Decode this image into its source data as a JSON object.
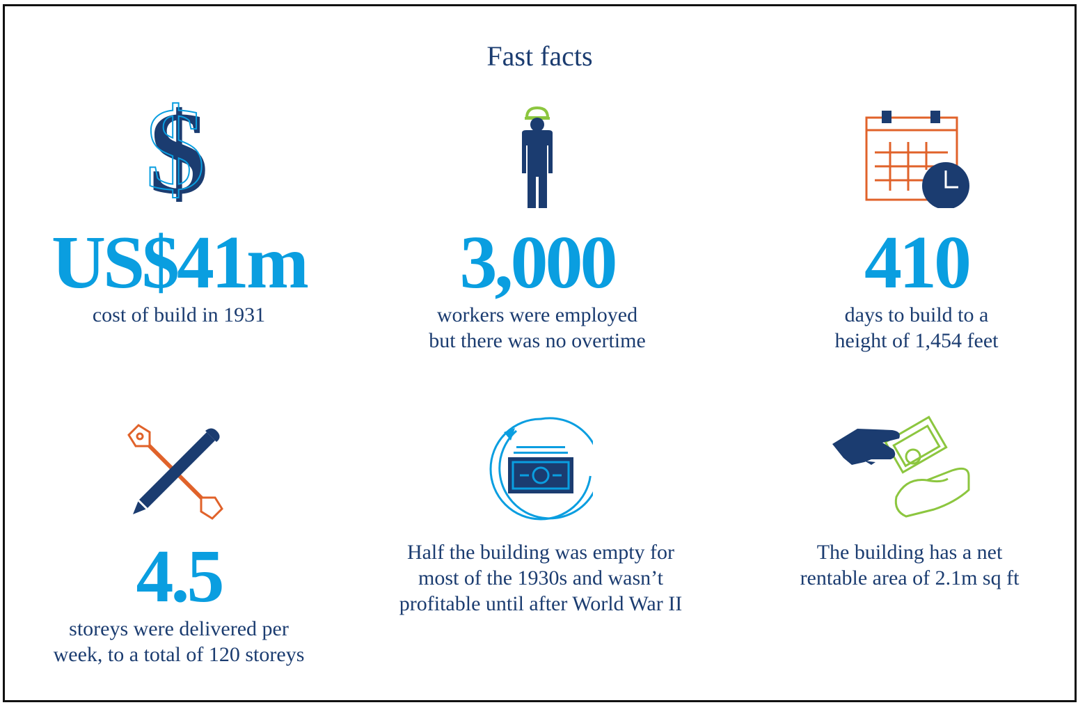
{
  "title": "Fast facts",
  "facts": [
    {
      "icon": "dollar-icon",
      "value": "US$41m",
      "lines": [
        "cost of build in 1931"
      ]
    },
    {
      "icon": "worker-icon",
      "value": "3,000",
      "lines": [
        "workers were employed",
        "but there was no overtime"
      ]
    },
    {
      "icon": "calendar-clock-icon",
      "value": "410",
      "lines": [
        "days to build to a",
        "height of 1,454 feet"
      ]
    },
    {
      "icon": "wrench-pencil-icon",
      "value": "4.5",
      "lines": [
        "storeys were delivered per",
        "week, to a total of 120 storeys"
      ]
    },
    {
      "icon": "banknote-cycle-icon",
      "value": "",
      "lines": [
        "Half the building was empty for",
        "most of the 1930s and wasn’t",
        "profitable until after World War II"
      ]
    },
    {
      "icon": "hand-cash-icon",
      "value": "",
      "lines": [
        "The building has a net",
        "rentable area of 2.1m sq ft"
      ]
    }
  ],
  "colors": {
    "navy": "#1b3c70",
    "blue": "#0a9ee0",
    "orange": "#e0622a",
    "green": "#8cc63f"
  }
}
